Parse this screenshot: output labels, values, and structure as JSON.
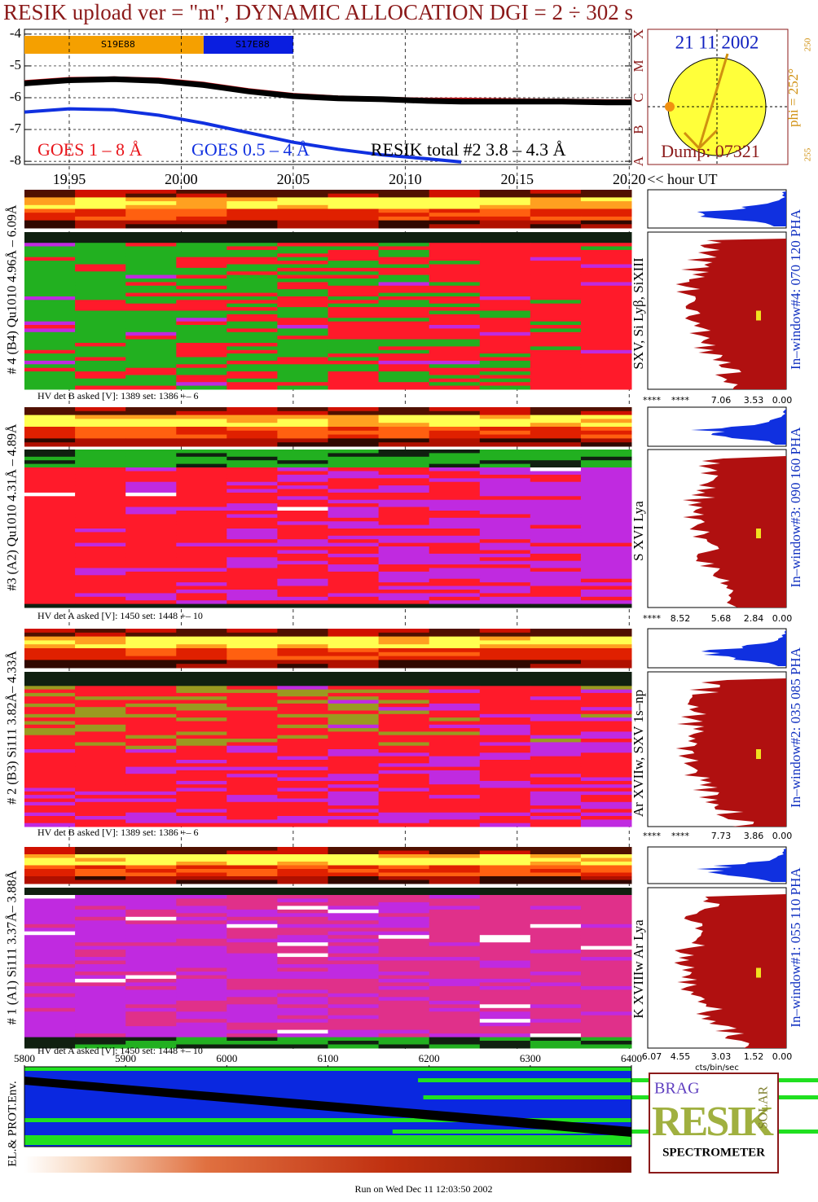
{
  "chart_data": {
    "type": "line",
    "title": "RESIK upload ver = \"m\", DYNAMIC ALLOCATION  DGI =   2 ÷ 302 s",
    "x": [
      19.93,
      19.95,
      19.97,
      19.99,
      20.01,
      20.03,
      20.05,
      20.07,
      20.09,
      20.11,
      20.125,
      20.15,
      20.17,
      20.19,
      20.201
    ],
    "xlim": [
      19.93,
      20.201
    ],
    "xticks": [
      19.95,
      {
        "value": 20,
        "label": "20.00"
      },
      20.05,
      {
        "value": 20.1,
        "label": "20.10"
      },
      20.15,
      {
        "value": 20.2,
        "label": "20.20"
      }
    ],
    "x_label": "<< hour UT",
    "ylim": [
      -8.1,
      -3.85
    ],
    "yticks": [
      -4,
      -5,
      -6,
      -7,
      -8
    ],
    "y2lim": [
      -8.1,
      -3.85
    ],
    "y2ticks": [
      {
        "value": -8,
        "label": "A"
      },
      {
        "value": -7,
        "label": "B"
      },
      {
        "value": -6,
        "label": "C"
      },
      {
        "value": -5,
        "label": "M"
      },
      {
        "value": -4,
        "label": "X"
      }
    ],
    "grid": true,
    "series": [
      {
        "name": "GOES 1 – 8 Å",
        "color": "#e8141a",
        "values": [
          -5.5,
          -5.4,
          -5.38,
          -5.42,
          -5.55,
          -5.75,
          -5.9,
          -5.98,
          -6.02,
          -6.05,
          -6.05,
          -6.07,
          -6.08,
          -6.1,
          -6.1
        ]
      },
      {
        "name": "GOES 0.5 – 4 Å",
        "color": "#1030e0",
        "values": [
          -6.45,
          -6.35,
          -6.38,
          -6.55,
          -6.8,
          -7.1,
          -7.4,
          -7.62,
          -7.8,
          -7.92,
          -8.02,
          null,
          null,
          null,
          null
        ]
      },
      {
        "name": "RESIK total #2  3.8 – 4.3 Å",
        "color": "#000000",
        "values": [
          -5.55,
          -5.45,
          -5.42,
          -5.47,
          -5.6,
          -5.8,
          -5.95,
          -6.02,
          -6.05,
          -6.1,
          -6.12,
          -6.12,
          -6.12,
          -6.15,
          -6.15
        ]
      }
    ],
    "regions": [
      {
        "label": "S19E88",
        "x": [
          19.93,
          20.01
        ],
        "color": "#f5a000"
      },
      {
        "label": "S17E88",
        "x": [
          20.01,
          20.05
        ],
        "color": "#0a1ee0"
      }
    ]
  },
  "sun_panel": {
    "date": "21 11 2002",
    "dump": "Dump: 07321",
    "phi": "phi = 252°",
    "phi_top": "250",
    "phi_bottom": "255"
  },
  "panels": [
    {
      "label": "# 4 (B4) Qu1010 4.96Å – 6.09Å",
      "lines": "SXV, Si Lyβ, SiXIII",
      "window": "In–window#4:  070 120 PHA",
      "hv": "HV det B asked [V]:  1389 set:  1386 +–   6",
      "hist_ticks": [
        "****",
        "****",
        "7.06",
        "3.53",
        "0.00"
      ]
    },
    {
      "label": "#3 (A2) Qu1010  4.31Å – 4.89Å",
      "lines": "S XVI Lya",
      "window": "In–window#3:  090 160 PHA",
      "hv": "HV det A asked [V]:  1450 set:  1448 +–   10",
      "hist_ticks": [
        "****",
        "8.52",
        "5.68",
        "2.84",
        "0.00"
      ]
    },
    {
      "label": "# 2 (B3) Si111  3.82Å– 4.33Å",
      "lines": "Ar XVIIw, SXV 1s–np",
      "window": "In–window#2:  035 085 PHA",
      "hv": "HV det B asked [V]:  1389 set:  1386 +–   6",
      "hist_ticks": [
        "****",
        "****",
        "7.73",
        "3.86",
        "0.00"
      ]
    },
    {
      "label": "# 1 (A1) Si111  3.37Å– 3.88Å",
      "lines": "K XVIIIw  Ar Lya",
      "window": "In–window#1:  055 110 PHA",
      "hv": "HV det A asked [V]:  1450 set:  1448 +–   10",
      "hist_ticks": [
        "6.07",
        "4.55",
        "3.03",
        "1.52",
        "0.00"
      ]
    }
  ],
  "hist_unit": "cts/bin/sec",
  "env": {
    "label": "EL.& PROT.Env.",
    "xlim": [
      5800,
      6400
    ],
    "xticks": [
      5800,
      5900,
      6000,
      6100,
      6200,
      6300,
      6400
    ]
  },
  "logo": {
    "top": "BRAG",
    "main": "RESIK",
    "side": "SOLAR",
    "bottom": "SPECTROMETER"
  },
  "footer": "Run on Wed Dec 11 12:03:50 2002"
}
